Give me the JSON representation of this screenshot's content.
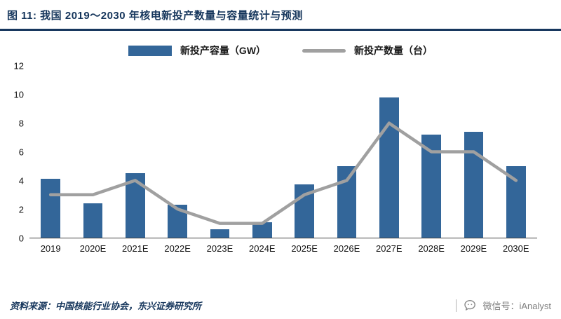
{
  "header": {
    "title": "图 11: 我国 2019～2030 年核电新投产数量与容量统计与预测"
  },
  "legend": {
    "bar_label": "新投产容量（GW）",
    "line_label": "新投产数量（台）"
  },
  "chart_data": {
    "type": "bar+line",
    "categories": [
      "2019",
      "2020E",
      "2021E",
      "2022E",
      "2023E",
      "2024E",
      "2025E",
      "2026E",
      "2027E",
      "2028E",
      "2029E",
      "2030E"
    ],
    "series": [
      {
        "name": "新投产容量（GW）",
        "type": "bar",
        "color": "#336699",
        "values": [
          4.1,
          2.4,
          4.5,
          2.3,
          0.6,
          1.1,
          3.7,
          5.0,
          9.8,
          7.2,
          7.4,
          5.0
        ]
      },
      {
        "name": "新投产数量（台）",
        "type": "line",
        "color": "#A0A0A0",
        "values": [
          3,
          3,
          4,
          2,
          1,
          1,
          3,
          4,
          8,
          6,
          6,
          4
        ]
      }
    ],
    "title": "我国 2019～2030 年核电新投产数量与容量统计与预测",
    "xlabel": "",
    "ylabel": "",
    "ylim": [
      0,
      12
    ],
    "yticks": [
      0,
      2,
      4,
      6,
      8,
      10,
      12
    ],
    "grid": false,
    "legend_position": "top"
  },
  "footer": {
    "source": "资料来源：中国核能行业协会，东兴证券研究所"
  },
  "watermark": {
    "wechat_label": "微信号：iAnalyst"
  },
  "colors": {
    "accent_navy": "#17375E",
    "bar_blue": "#336699",
    "line_gray": "#A0A0A0"
  }
}
